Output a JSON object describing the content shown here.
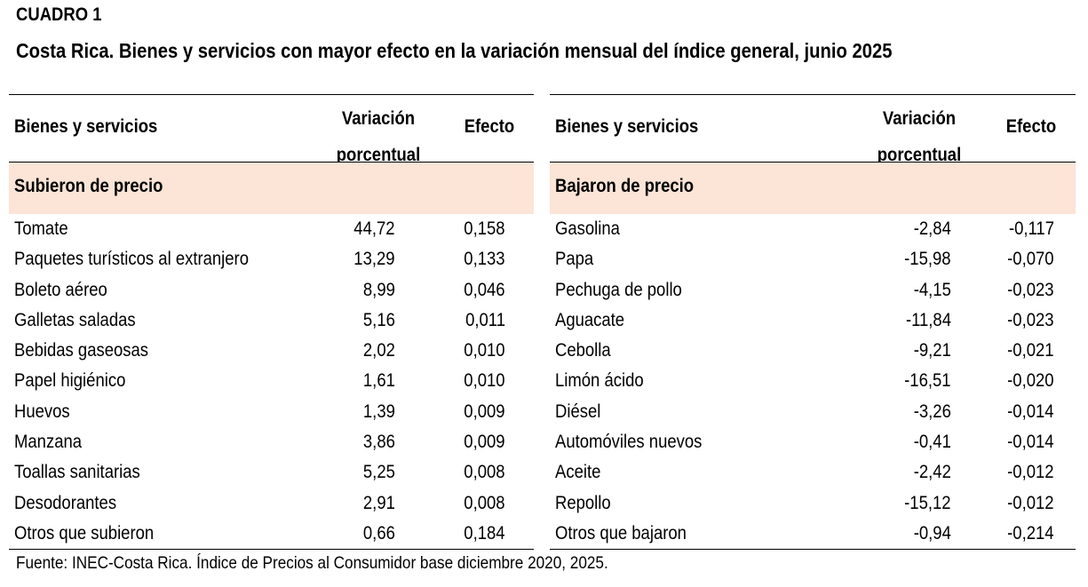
{
  "header": {
    "label": "CUADRO 1",
    "title": "Costa Rica. Bienes y servicios con mayor efecto en la variación mensual del índice general, junio 2025"
  },
  "columns": {
    "items": "Bienes y servicios",
    "variation_line1": "Variación",
    "variation_line2": "porcentual",
    "effect": "Efecto"
  },
  "left_table": {
    "section": "Subieron de precio",
    "rows": [
      {
        "item": "Tomate",
        "variation": "44,72",
        "effect": "0,158"
      },
      {
        "item": "Paquetes turísticos al extranjero",
        "variation": "13,29",
        "effect": "0,133"
      },
      {
        "item": "Boleto aéreo",
        "variation": "8,99",
        "effect": "0,046"
      },
      {
        "item": "Galletas saladas",
        "variation": "5,16",
        "effect": "0,011"
      },
      {
        "item": "Bebidas gaseosas",
        "variation": "2,02",
        "effect": "0,010"
      },
      {
        "item": "Papel higiénico",
        "variation": "1,61",
        "effect": "0,010"
      },
      {
        "item": "Huevos",
        "variation": "1,39",
        "effect": "0,009"
      },
      {
        "item": "Manzana",
        "variation": "3,86",
        "effect": "0,009"
      },
      {
        "item": "Toallas sanitarias",
        "variation": "5,25",
        "effect": "0,008"
      },
      {
        "item": "Desodorantes",
        "variation": "2,91",
        "effect": "0,008"
      },
      {
        "item": "Otros que subieron",
        "variation": "0,66",
        "effect": "0,184"
      }
    ]
  },
  "right_table": {
    "section": "Bajaron de precio",
    "rows": [
      {
        "item": "Gasolina",
        "variation": "-2,84",
        "effect": "-0,117"
      },
      {
        "item": "Papa",
        "variation": "-15,98",
        "effect": "-0,070"
      },
      {
        "item": "Pechuga de pollo",
        "variation": "-4,15",
        "effect": "-0,023"
      },
      {
        "item": "Aguacate",
        "variation": "-11,84",
        "effect": "-0,023"
      },
      {
        "item": "Cebolla",
        "variation": "-9,21",
        "effect": "-0,021"
      },
      {
        "item": "Limón ácido",
        "variation": "-16,51",
        "effect": "-0,020"
      },
      {
        "item": "Diésel",
        "variation": "-3,26",
        "effect": "-0,014"
      },
      {
        "item": "Automóviles nuevos",
        "variation": "-0,41",
        "effect": "-0,014"
      },
      {
        "item": "Aceite",
        "variation": "-2,42",
        "effect": "-0,012"
      },
      {
        "item": "Repollo",
        "variation": "-15,12",
        "effect": "-0,012"
      },
      {
        "item": "Otros que bajaron",
        "variation": "-0,94",
        "effect": "-0,214"
      }
    ]
  },
  "footer": {
    "source": "Fuente: INEC-Costa Rica. Índice de Precios al Consumidor base diciembre 2020, 2025."
  },
  "colors": {
    "section_fill": "#fce4d6",
    "text": "#000000",
    "rule": "#000000"
  }
}
